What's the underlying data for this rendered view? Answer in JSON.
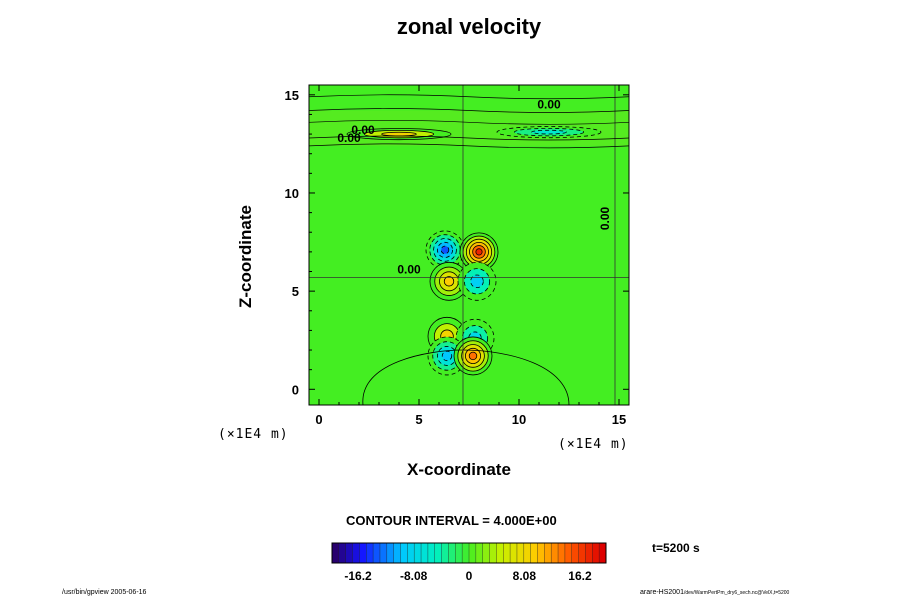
{
  "chart_data": {
    "type": "heatmap",
    "title": "zonal velocity",
    "xlabel": "X-coordinate",
    "ylabel": "Z-coordinate",
    "x_unit": "(×1E4 m)",
    "y_unit": "(×1E4 m)",
    "xlim": [
      -0.5,
      15.5
    ],
    "ylim": [
      -0.8,
      15.5
    ],
    "x_ticks": [
      "0",
      "5",
      "10",
      "15"
    ],
    "y_ticks": [
      "0",
      "5",
      "10",
      "15"
    ],
    "contour_interval": "CONTOUR INTERVAL = 4.000E+00",
    "contour_labels": [
      "0.00",
      "0.00",
      "0.00",
      "0.00",
      "0.00"
    ],
    "colorbar": {
      "ticks": [
        "-16.2",
        "-8.08",
        "0",
        "8.08",
        "16.2"
      ],
      "range": [
        -20,
        20
      ],
      "colormap": "rainbow"
    },
    "time": "t=5200 s",
    "features": [
      {
        "x": 6.3,
        "z": 7.1,
        "value": -14,
        "kind": "negative"
      },
      {
        "x": 8.0,
        "z": 7.0,
        "value": 18,
        "kind": "positive"
      },
      {
        "x": 6.5,
        "z": 5.5,
        "value": 10,
        "kind": "positive"
      },
      {
        "x": 7.9,
        "z": 5.5,
        "value": -9,
        "kind": "negative"
      },
      {
        "x": 6.4,
        "z": 2.7,
        "value": 9,
        "kind": "positive"
      },
      {
        "x": 7.8,
        "z": 2.6,
        "value": -8,
        "kind": "negative"
      },
      {
        "x": 6.4,
        "z": 1.7,
        "value": -10,
        "kind": "negative"
      },
      {
        "x": 7.7,
        "z": 1.7,
        "value": 14,
        "kind": "positive"
      },
      {
        "x": 4.0,
        "z": 13.0,
        "value": 9,
        "kind": "positive"
      },
      {
        "x": 11.5,
        "z": 13.1,
        "value": -6,
        "kind": "negative"
      }
    ]
  },
  "footer": {
    "left": "/usr/bin/gpview 2005-06-16",
    "right_main": "arare-HS2001",
    "right_small": "/dev/WarmPertPm_dry6_sech.nc@VelX,t=5200"
  },
  "colors": {
    "background": "#44ee22",
    "positive": "#dd1111",
    "negative": "#1111cc"
  }
}
